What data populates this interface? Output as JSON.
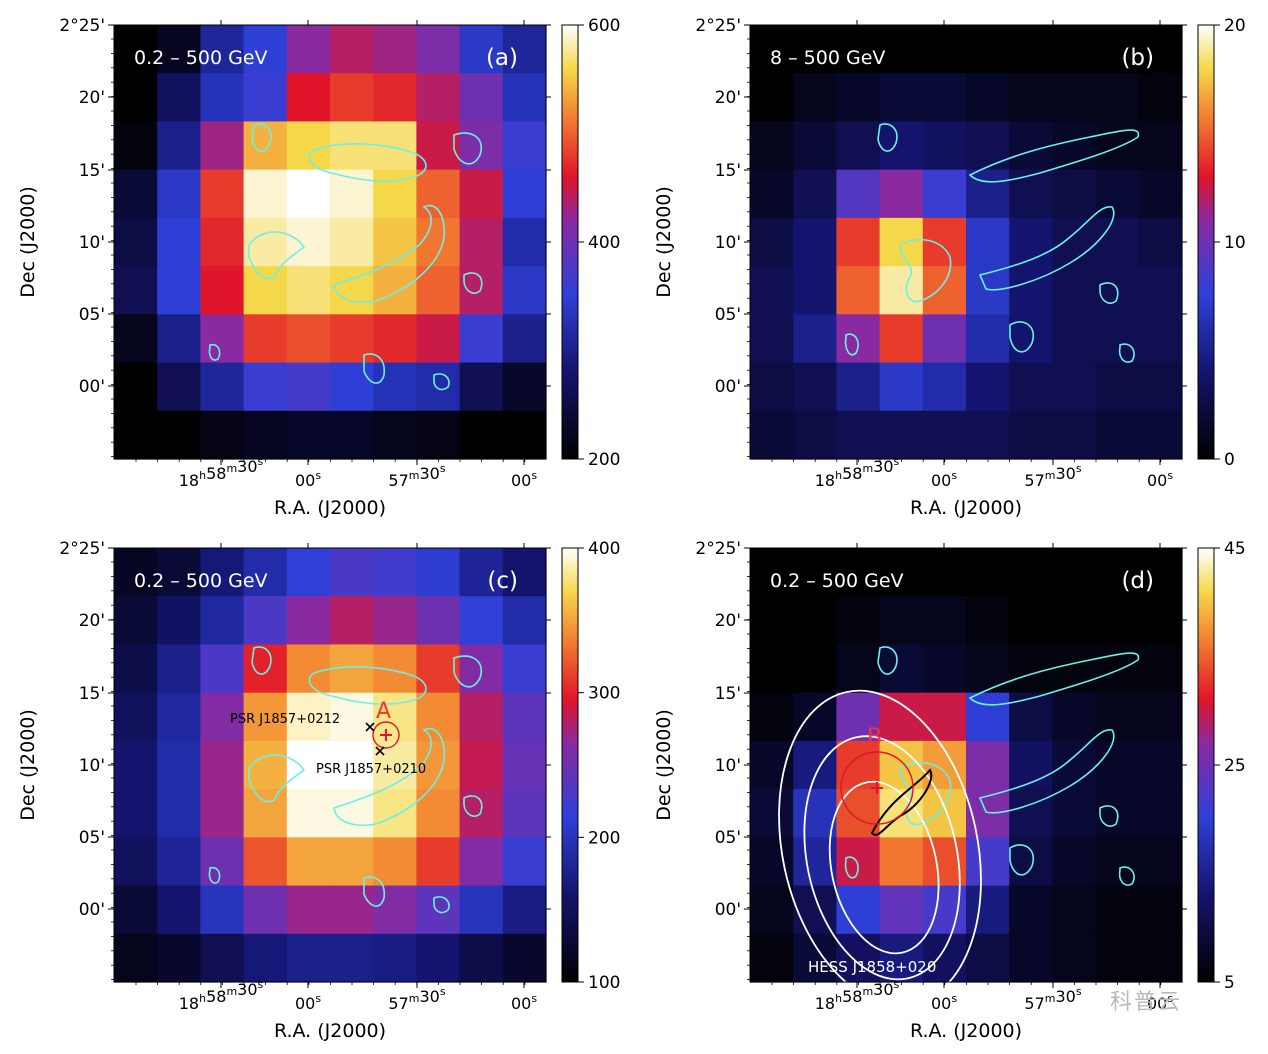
{
  "watermark": "科普云",
  "chart_data": [
    {
      "panel": "a",
      "type": "heatmap",
      "energy_label": "0.2 – 500 GeV",
      "panel_label": "(a)",
      "xlabel": "R.A. (J2000)",
      "ylabel": "Dec (J2000)",
      "x_ticks": [
        "18h58m30s",
        "00s",
        "57m30s",
        "00s"
      ],
      "y_ticks": [
        "2°25'",
        "20'",
        "15'",
        "10'",
        "05'",
        "00'"
      ],
      "colorbar": {
        "min": 200,
        "max": 600,
        "ticks": [
          "200",
          "400",
          "600"
        ]
      },
      "values": [
        [
          200,
          225,
          310,
          350,
          420,
          440,
          430,
          410,
          340,
          310
        ],
        [
          200,
          270,
          330,
          360,
          460,
          480,
          470,
          440,
          400,
          330
        ],
        [
          210,
          300,
          430,
          540,
          560,
          570,
          570,
          450,
          410,
          360
        ],
        [
          240,
          340,
          480,
          590,
          600,
          590,
          560,
          500,
          450,
          350
        ],
        [
          250,
          350,
          470,
          580,
          590,
          580,
          550,
          510,
          440,
          320
        ],
        [
          260,
          350,
          460,
          560,
          570,
          560,
          540,
          500,
          440,
          340
        ],
        [
          220,
          300,
          420,
          480,
          490,
          480,
          470,
          450,
          360,
          300
        ],
        [
          200,
          260,
          310,
          360,
          370,
          350,
          330,
          320,
          260,
          230
        ],
        [
          200,
          200,
          215,
          225,
          230,
          230,
          220,
          215,
          200,
          200
        ]
      ],
      "annotations": []
    },
    {
      "panel": "b",
      "type": "heatmap",
      "energy_label": "8 – 500 GeV",
      "panel_label": "(b)",
      "xlabel": "R.A. (J2000)",
      "ylabel": "Dec (J2000)",
      "x_ticks": [
        "18h58m30s",
        "00s",
        "57m30s",
        "00s"
      ],
      "y_ticks": [
        "2°25'",
        "20'",
        "15'",
        "10'",
        "05'",
        "00'"
      ],
      "colorbar": {
        "min": 0,
        "max": 20,
        "ticks": [
          "0",
          "10",
          "20"
        ]
      },
      "values": [
        [
          0,
          0,
          0,
          0,
          0,
          0,
          0,
          0,
          0,
          0
        ],
        [
          0,
          1,
          1.5,
          2,
          2,
          1.5,
          1,
          1,
          1,
          0.5
        ],
        [
          1,
          2,
          3,
          4,
          3.5,
          3,
          2,
          1.5,
          1,
          1
        ],
        [
          1.5,
          3,
          9,
          11,
          8,
          5,
          3,
          2.5,
          2,
          1.5
        ],
        [
          2.5,
          4,
          14,
          18,
          14,
          7,
          4,
          3,
          3,
          2.5
        ],
        [
          3,
          4,
          15,
          19,
          15,
          7,
          4,
          3,
          3,
          3
        ],
        [
          3,
          5,
          11,
          14,
          10,
          6,
          4,
          3,
          3,
          3
        ],
        [
          2.5,
          3,
          5,
          7,
          6,
          4,
          3,
          3,
          2.5,
          2.5
        ],
        [
          2,
          2.5,
          3,
          3,
          3,
          3,
          2.5,
          2.5,
          2,
          2
        ]
      ],
      "annotations": []
    },
    {
      "panel": "c",
      "type": "heatmap",
      "energy_label": "0.2 – 500 GeV",
      "panel_label": "(c)",
      "xlabel": "R.A. (J2000)",
      "ylabel": "Dec (J2000)",
      "x_ticks": [
        "18h58m30s",
        "00s",
        "57m30s",
        "00s"
      ],
      "y_ticks": [
        "2°25'",
        "20'",
        "15'",
        "10'",
        "05'",
        "00'"
      ],
      "colorbar": {
        "min": 100,
        "max": 400,
        "ticks": [
          "100",
          "200",
          "300",
          "400"
        ]
      },
      "values": [
        [
          120,
          130,
          165,
          190,
          215,
          230,
          225,
          210,
          180,
          160
        ],
        [
          130,
          155,
          185,
          230,
          265,
          280,
          270,
          250,
          215,
          190
        ],
        [
          140,
          175,
          230,
          300,
          340,
          350,
          340,
          310,
          260,
          220
        ],
        [
          150,
          185,
          260,
          345,
          390,
          395,
          380,
          340,
          280,
          240
        ],
        [
          160,
          190,
          270,
          355,
          400,
          400,
          385,
          345,
          285,
          245
        ],
        [
          160,
          190,
          270,
          350,
          395,
          395,
          380,
          340,
          280,
          240
        ],
        [
          150,
          180,
          250,
          320,
          350,
          350,
          340,
          310,
          260,
          220
        ],
        [
          130,
          160,
          200,
          250,
          270,
          270,
          260,
          240,
          200,
          170
        ],
        [
          115,
          125,
          145,
          165,
          175,
          175,
          170,
          160,
          140,
          125
        ]
      ],
      "annotations": [
        {
          "text": "A",
          "color": "#ff3030"
        },
        {
          "text": "PSR J1857+0212",
          "color": "#000000"
        },
        {
          "text": "PSR J1857+0210",
          "color": "#000000"
        }
      ]
    },
    {
      "panel": "d",
      "type": "heatmap",
      "energy_label": "0.2 – 500 GeV",
      "panel_label": "(d)",
      "xlabel": "R.A. (J2000)",
      "ylabel": "Dec (J2000)",
      "x_ticks": [
        "18h58m30s",
        "00s",
        "57m30s",
        "00s"
      ],
      "y_ticks": [
        "2°25'",
        "20'",
        "15'",
        "10'",
        "05'",
        "00'"
      ],
      "colorbar": {
        "min": 5,
        "max": 45,
        "ticks": [
          "5",
          "25",
          "45"
        ]
      },
      "values": [
        [
          5,
          5,
          5,
          5,
          5,
          5,
          5,
          5,
          5,
          5
        ],
        [
          5,
          5,
          6,
          7,
          7,
          6,
          5,
          5,
          5,
          5
        ],
        [
          5,
          5,
          7,
          9,
          8,
          7,
          6,
          6,
          6,
          6
        ],
        [
          6,
          8,
          25,
          30,
          30,
          20,
          10,
          8,
          7,
          7
        ],
        [
          8,
          14,
          33,
          40,
          38,
          26,
          12,
          9,
          8,
          8
        ],
        [
          9,
          18,
          34,
          42,
          40,
          26,
          11,
          9,
          8,
          8
        ],
        [
          8,
          16,
          30,
          36,
          34,
          22,
          10,
          8,
          7,
          7
        ],
        [
          7,
          11,
          20,
          24,
          22,
          14,
          8,
          7,
          6,
          6
        ],
        [
          6,
          9,
          12,
          14,
          12,
          10,
          8,
          7,
          6,
          6
        ]
      ],
      "annotations": [
        {
          "text": "B",
          "color": "#ff3030"
        },
        {
          "text": "HESS J1858+020",
          "color": "#ffffff"
        }
      ]
    }
  ]
}
